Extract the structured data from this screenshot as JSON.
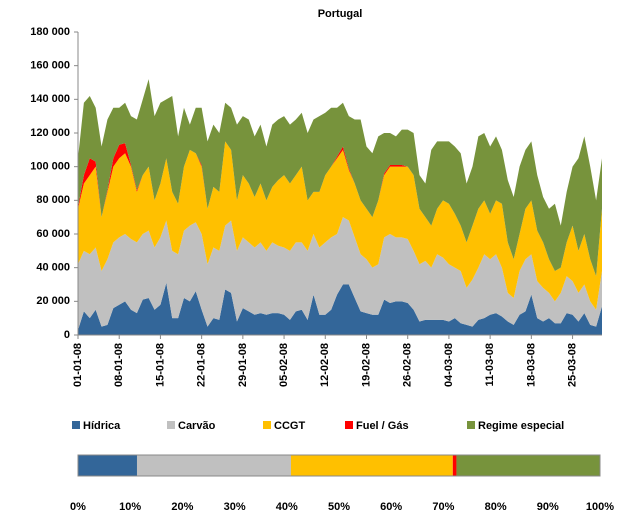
{
  "chart_data": [
    {
      "type": "stacked_area",
      "title": "Portugal",
      "categories": [
        "01-01-08",
        null,
        null,
        null,
        null,
        null,
        null,
        "08-01-08",
        null,
        null,
        null,
        null,
        null,
        null,
        "15-01-08",
        null,
        null,
        null,
        null,
        null,
        null,
        "22-01-08",
        null,
        null,
        null,
        null,
        null,
        null,
        "29-01-08",
        null,
        null,
        null,
        null,
        null,
        null,
        "05-02-08",
        null,
        null,
        null,
        null,
        null,
        null,
        "12-02-08",
        null,
        null,
        null,
        null,
        null,
        null,
        "19-02-08",
        null,
        null,
        null,
        null,
        null,
        null,
        "26-02-08",
        null,
        null,
        null,
        null,
        null,
        null,
        "04-03-08",
        null,
        null,
        null,
        null,
        null,
        null,
        "11-03-08",
        null,
        null,
        null,
        null,
        null,
        null,
        "18-03-08",
        null,
        null,
        null,
        null,
        null,
        null,
        "25-03-08",
        null,
        null,
        null,
        null,
        null
      ],
      "series": [
        {
          "name": "Hídrica",
          "color": "#336699",
          "values": [
            3000,
            14000,
            10000,
            15000,
            5000,
            6000,
            16000,
            18000,
            20000,
            15000,
            13000,
            21000,
            22000,
            15000,
            18000,
            31000,
            10000,
            10000,
            22000,
            20000,
            26000,
            15000,
            5000,
            10000,
            9000,
            27000,
            25000,
            8000,
            16000,
            14000,
            12000,
            13000,
            12000,
            13000,
            13000,
            12000,
            9000,
            14000,
            15000,
            9000,
            24000,
            12000,
            12000,
            15000,
            24000,
            30000,
            30000,
            22000,
            14000,
            13000,
            12000,
            12000,
            21000,
            19000,
            20000,
            20000,
            19000,
            15000,
            8000,
            9000,
            9000,
            9000,
            9000,
            8000,
            10000,
            7000,
            6000,
            5000,
            9000,
            10000,
            12000,
            13000,
            11000,
            8000,
            6000,
            12000,
            14000,
            24000,
            10000,
            8000,
            10000,
            7000,
            7000,
            13000,
            12000,
            8000,
            13000,
            6000,
            5000,
            17000
          ]
        },
        {
          "name": "Carvão",
          "color": "#c0c0c0",
          "values": [
            39000,
            36000,
            38000,
            37000,
            33000,
            39000,
            39000,
            40000,
            40000,
            42000,
            42000,
            39000,
            40000,
            37000,
            40000,
            37000,
            40000,
            38000,
            40000,
            45000,
            41000,
            45000,
            37000,
            42000,
            41000,
            38000,
            43000,
            42000,
            42000,
            41000,
            40000,
            42000,
            38000,
            42000,
            40000,
            40000,
            41000,
            41000,
            40000,
            41000,
            36000,
            40000,
            43000,
            43000,
            36000,
            40000,
            38000,
            36000,
            34000,
            32000,
            28000,
            30000,
            37000,
            41000,
            38000,
            38000,
            38000,
            35000,
            34000,
            35000,
            31000,
            39000,
            37000,
            34000,
            30000,
            31000,
            22000,
            28000,
            31000,
            38000,
            33000,
            35000,
            29000,
            17000,
            16000,
            26000,
            31000,
            24000,
            22000,
            20000,
            15000,
            13000,
            18000,
            22000,
            20000,
            17000,
            17000,
            14000,
            10000,
            21000
          ]
        },
        {
          "name": "CCGT",
          "color": "#ffc000",
          "values": [
            33000,
            40000,
            47000,
            48000,
            32000,
            40000,
            45000,
            47000,
            48000,
            43000,
            30000,
            35000,
            38000,
            28000,
            32000,
            37000,
            35000,
            30000,
            38000,
            45000,
            41000,
            40000,
            33000,
            36000,
            35000,
            50000,
            42000,
            30000,
            37000,
            35000,
            30000,
            35000,
            30000,
            33000,
            39000,
            43000,
            40000,
            40000,
            45000,
            30000,
            25000,
            33000,
            40000,
            42000,
            45000,
            40000,
            30000,
            32000,
            32000,
            30000,
            30000,
            38000,
            37000,
            40000,
            42000,
            42000,
            43000,
            45000,
            33000,
            26000,
            25000,
            27000,
            34000,
            36000,
            32000,
            27000,
            27000,
            32000,
            35000,
            32000,
            27000,
            32000,
            38000,
            30000,
            23000,
            22000,
            30000,
            32000,
            30000,
            27000,
            20000,
            18000,
            15000,
            20000,
            33000,
            25000,
            30000,
            25000,
            20000,
            37000
          ]
        },
        {
          "name": "Fuel / Gás",
          "color": "#ff0000",
          "values": [
            1000,
            5000,
            10000,
            3000,
            0,
            1000,
            5000,
            8000,
            6000,
            1000,
            1000,
            0,
            0,
            0,
            0,
            0,
            0,
            0,
            0,
            0,
            0,
            1000,
            0,
            0,
            0,
            0,
            0,
            0,
            0,
            0,
            0,
            0,
            0,
            0,
            0,
            0,
            0,
            0,
            0,
            0,
            0,
            0,
            0,
            0,
            1000,
            2000,
            1000,
            0,
            0,
            0,
            0,
            0,
            1000,
            1000,
            1000,
            1000,
            0,
            0,
            0,
            0,
            0,
            0,
            0,
            0,
            0,
            0,
            0,
            0,
            0,
            0,
            0,
            0,
            0,
            0,
            0,
            0,
            0,
            0,
            0,
            0,
            0,
            0,
            0,
            0,
            0,
            0,
            0,
            0,
            0,
            0
          ]
        },
        {
          "name": "Regime especial",
          "color": "#77933c",
          "values": [
            29000,
            43000,
            37000,
            32000,
            42000,
            42000,
            30000,
            22000,
            24000,
            29000,
            42000,
            45000,
            52000,
            50000,
            48000,
            35000,
            57000,
            40000,
            35000,
            15000,
            27000,
            34000,
            40000,
            37000,
            35000,
            23000,
            25000,
            45000,
            35000,
            38000,
            36000,
            35000,
            32000,
            37000,
            36000,
            35000,
            35000,
            33000,
            32000,
            40000,
            43000,
            45000,
            37000,
            35000,
            29000,
            26000,
            31000,
            38000,
            48000,
            37000,
            38000,
            38000,
            24000,
            19000,
            17000,
            21000,
            22000,
            25000,
            20000,
            20000,
            45000,
            40000,
            35000,
            37000,
            40000,
            43000,
            35000,
            35000,
            43000,
            40000,
            40000,
            38000,
            32000,
            37000,
            37000,
            40000,
            35000,
            35000,
            33000,
            27000,
            30000,
            40000,
            25000,
            30000,
            35000,
            55000,
            58000,
            55000,
            45000,
            30000
          ]
        }
      ],
      "ylim": [
        0,
        180000
      ],
      "yticks": [
        0,
        {
          "value": 20000,
          "label": "20 000"
        },
        {
          "value": 40000,
          "label": "40 000"
        },
        {
          "value": 60000,
          "label": "60 000"
        },
        {
          "value": 80000,
          "label": "80 000"
        },
        {
          "value": 100000,
          "label": "100 000"
        },
        {
          "value": 120000,
          "label": "120 000"
        },
        {
          "value": 140000,
          "label": "140 000"
        },
        {
          "value": 160000,
          "label": "160 000"
        },
        {
          "value": 180000,
          "label": "180 000"
        }
      ]
    },
    {
      "type": "stacked_hbar",
      "series": [
        {
          "color": "#336699",
          "values": [
            11.3
          ]
        },
        {
          "color": "#c0c0c0",
          "values": [
            29.5
          ]
        },
        {
          "color": "#ffc000",
          "values": [
            31
          ]
        },
        {
          "color": "#ff0000",
          "values": [
            0.7
          ]
        },
        {
          "color": "#77933c",
          "values": [
            27.5
          ]
        }
      ],
      "xlim": [
        0,
        100
      ],
      "xticks": [
        {
          "value": 0,
          "label": "0%"
        },
        {
          "value": 10,
          "label": "10%"
        },
        {
          "value": 20,
          "label": "20%"
        },
        {
          "value": 30,
          "label": "30%"
        },
        {
          "value": 40,
          "label": "40%"
        },
        {
          "value": 50,
          "label": "50%"
        },
        {
          "value": 60,
          "label": "60%"
        },
        {
          "value": 70,
          "label": "70%"
        },
        {
          "value": 80,
          "label": "80%"
        },
        {
          "value": 90,
          "label": "90%"
        },
        {
          "value": 100,
          "label": "100%"
        }
      ]
    }
  ]
}
